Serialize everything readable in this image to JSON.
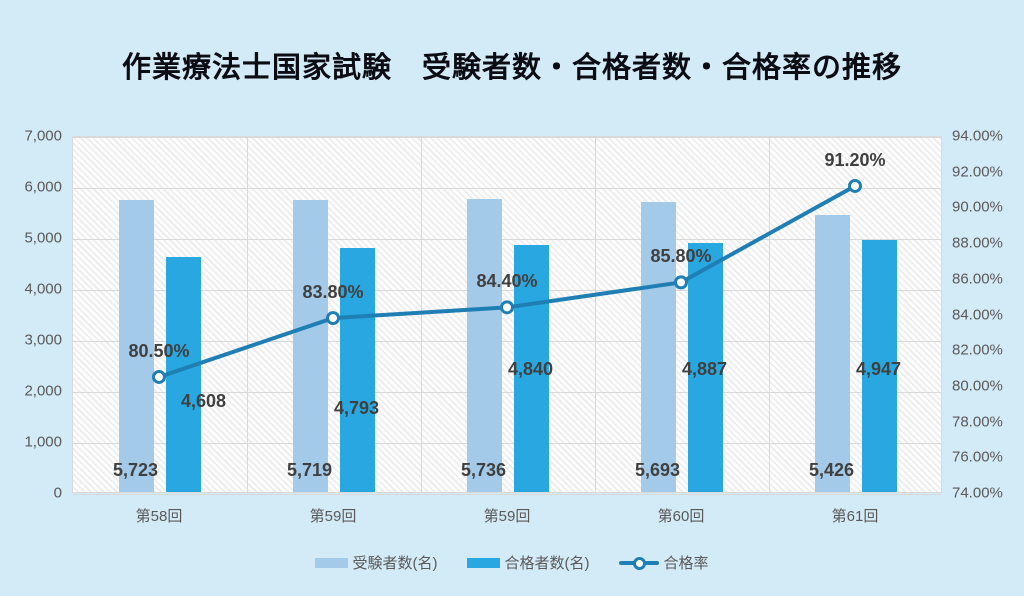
{
  "title": "作業療法士国家試験　受験者数・合格者数・合格率の推移",
  "colors": {
    "background": "#d3ebf7",
    "examinees_bar": "#a3cbe9",
    "passers_bar": "#29a7e0",
    "rate_line": "#1f7eb4",
    "data_label": "#404040",
    "axis_text": "#595959",
    "gridline": "#d9d9d9"
  },
  "chart_data": {
    "type": "bar",
    "subtype": "combo-bar-line",
    "title": "作業療法士国家試験　受験者数・合格者数・合格率の推移",
    "categories": [
      "第58回",
      "第59回",
      "第59回",
      "第60回",
      "第61回"
    ],
    "series": [
      {
        "name": "受験者数(名)",
        "type": "bar",
        "axis": "left",
        "color": "#a3cbe9",
        "values": [
          5723,
          5719,
          5736,
          5693,
          5426
        ],
        "labels": [
          "5,723",
          "5,719",
          "5,736",
          "5,693",
          "5,426"
        ]
      },
      {
        "name": "合格者数(名)",
        "type": "bar",
        "axis": "left",
        "color": "#29a7e0",
        "values": [
          4608,
          4793,
          4840,
          4887,
          4947
        ],
        "labels": [
          "4,608",
          "4,793",
          "4,840",
          "4,887",
          "4,947"
        ]
      },
      {
        "name": "合格率",
        "type": "line",
        "axis": "right",
        "color": "#1f7eb4",
        "values": [
          80.5,
          83.8,
          84.4,
          85.8,
          91.2
        ],
        "labels": [
          "80.50%",
          "83.80%",
          "84.40%",
          "85.80%",
          "91.20%"
        ]
      }
    ],
    "left_axis": {
      "min": 0,
      "max": 7000,
      "step": 1000,
      "ticks": [
        "0",
        "1,000",
        "2,000",
        "3,000",
        "4,000",
        "5,000",
        "6,000",
        "7,000"
      ]
    },
    "right_axis": {
      "min": 74,
      "max": 94,
      "step": 2,
      "ticks": [
        "74.00%",
        "76.00%",
        "78.00%",
        "80.00%",
        "82.00%",
        "84.00%",
        "86.00%",
        "88.00%",
        "90.00%",
        "92.00%",
        "94.00%"
      ]
    },
    "legend": {
      "position": "bottom-center",
      "entries": [
        "受験者数(名)",
        "合格者数(名)",
        "合格率"
      ]
    },
    "grid": "horizontal and vertical category boundaries, hatched plot background"
  }
}
